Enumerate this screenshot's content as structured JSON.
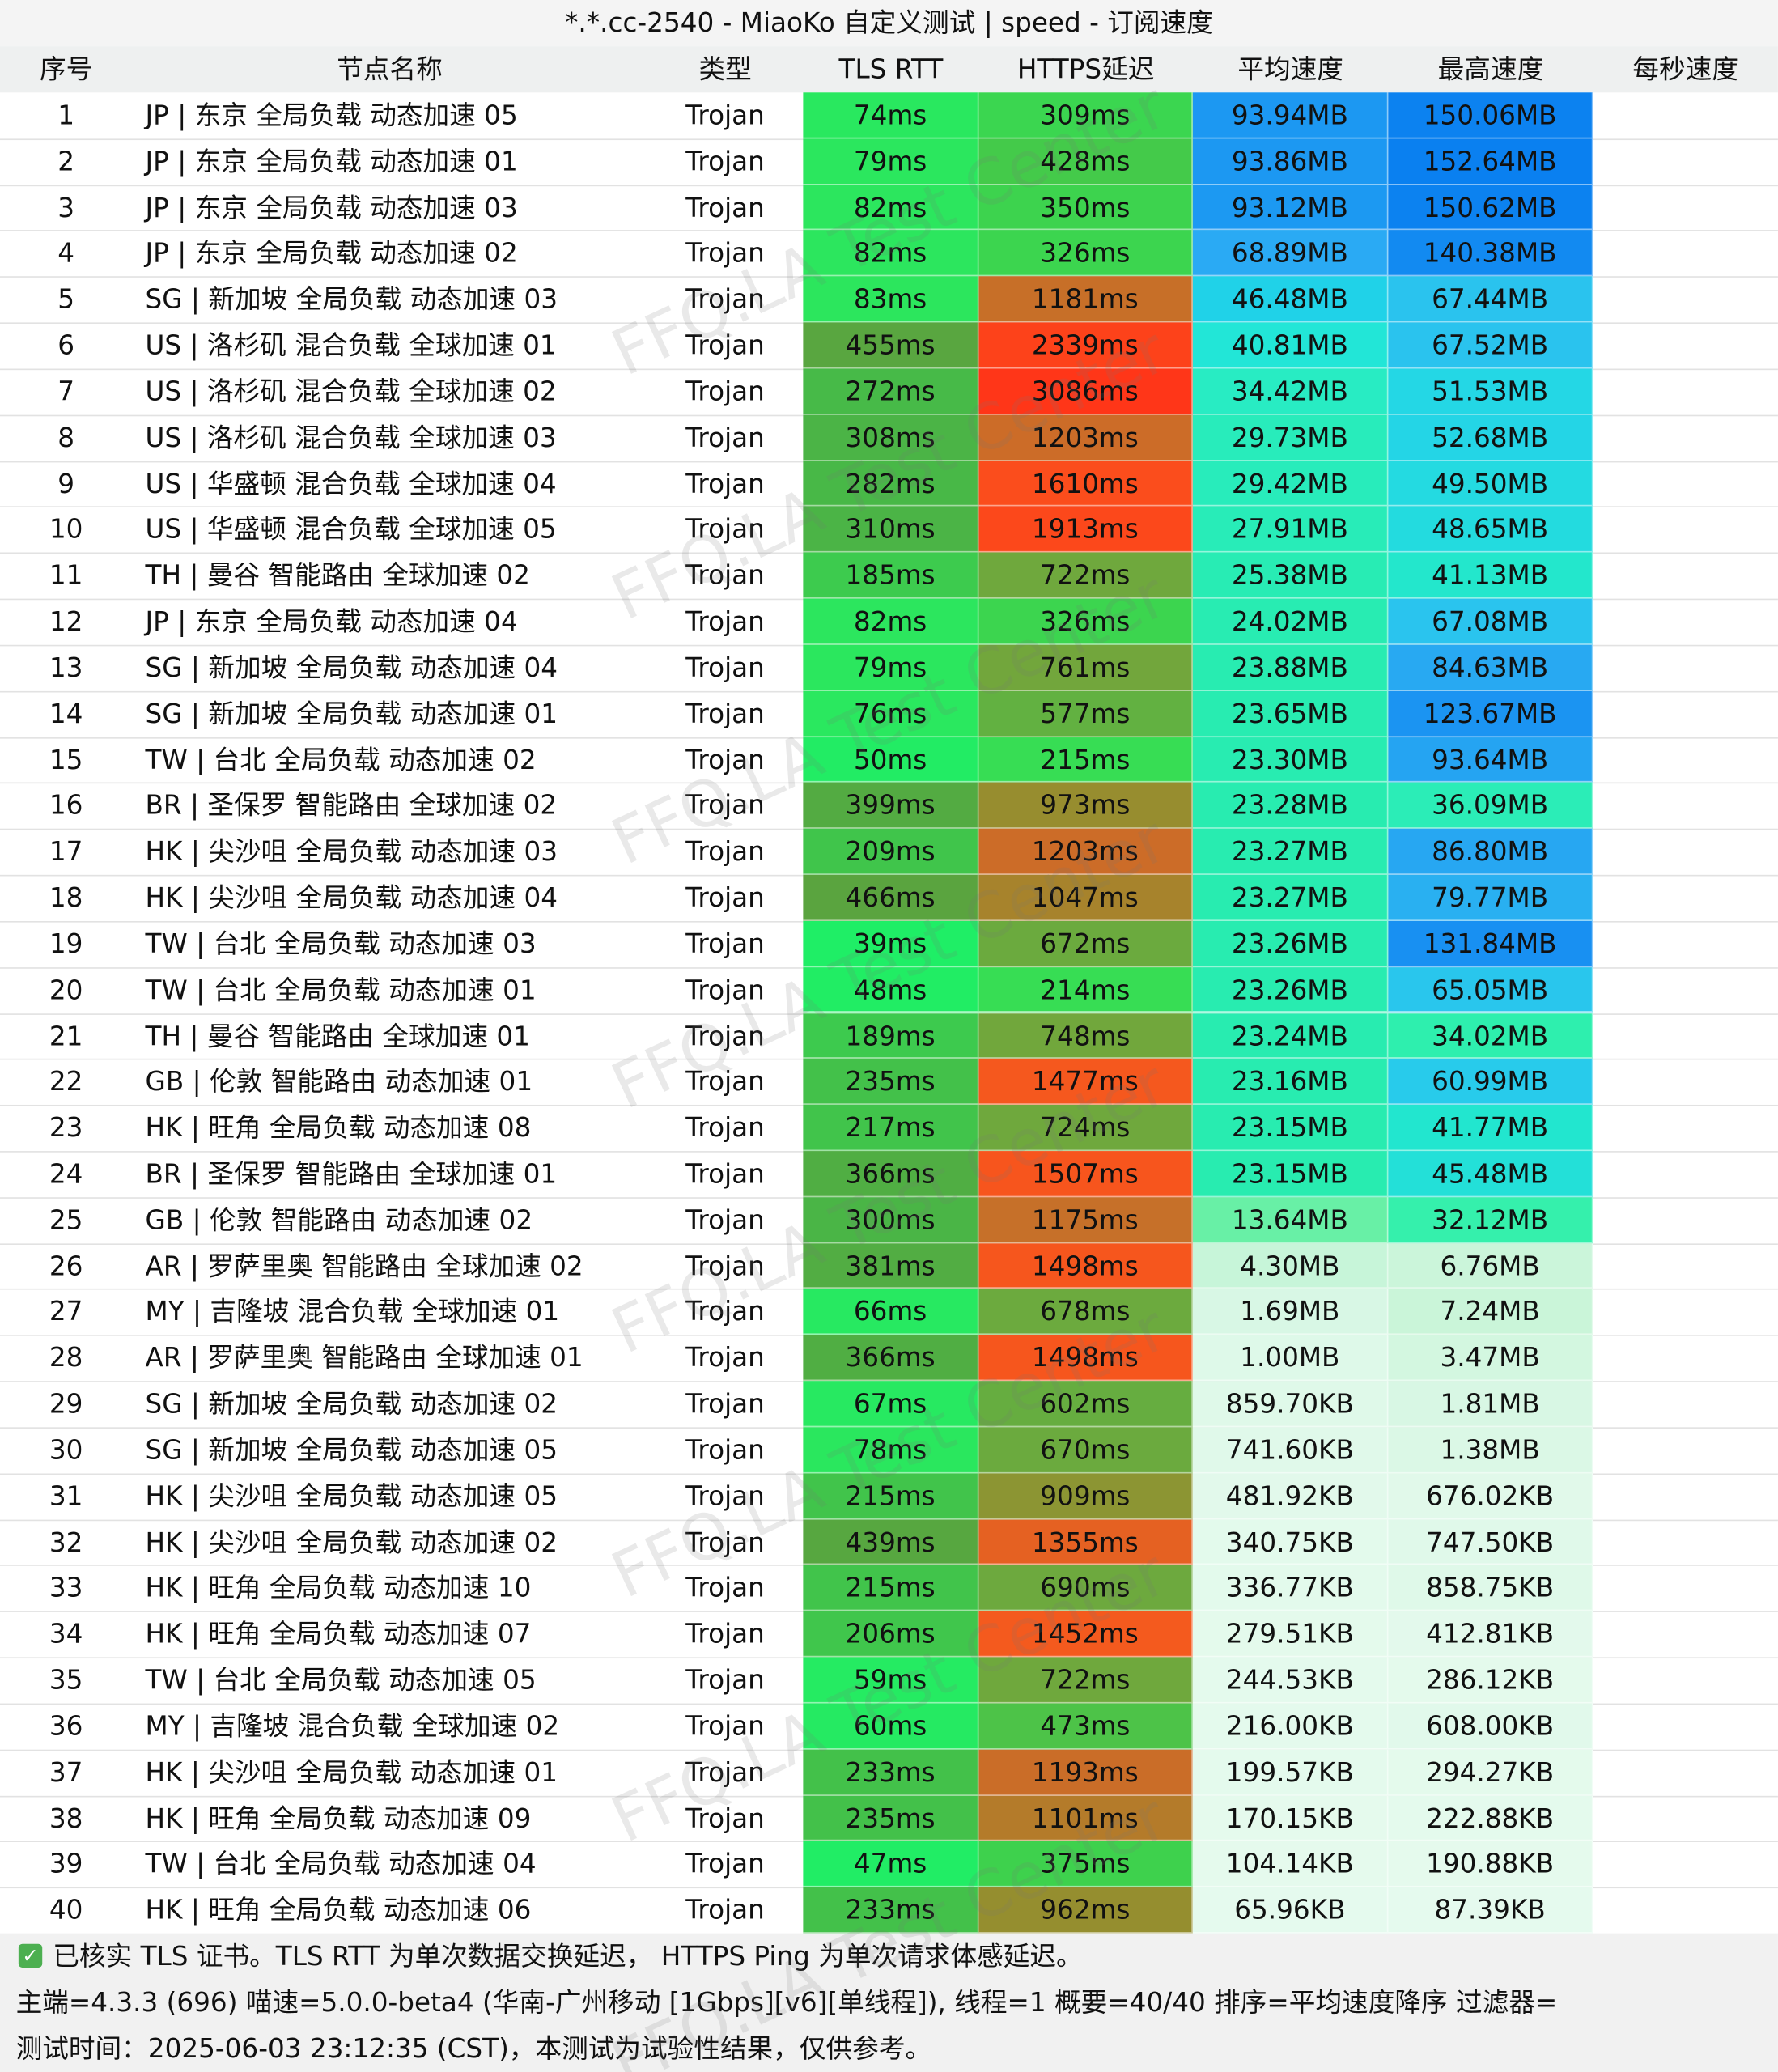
{
  "title": "*.*.cc-2540 - MiaoKo 自定义测试 | speed - 订阅速度",
  "watermark": "FFQ.LA Test Center",
  "table": {
    "headers": [
      "序号",
      "节点名称",
      "类型",
      "TLS RTT",
      "HTTPS延迟",
      "平均速度",
      "最高速度",
      "每秒速度"
    ],
    "rows": [
      [
        "1",
        "JP | 东京 全局负载 动态加速 05",
        "Trojan",
        "74ms",
        "309ms",
        "93.94MB",
        "150.06MB"
      ],
      [
        "2",
        "JP | 东京 全局负载 动态加速 01",
        "Trojan",
        "79ms",
        "428ms",
        "93.86MB",
        "152.64MB"
      ],
      [
        "3",
        "JP | 东京 全局负载 动态加速 03",
        "Trojan",
        "82ms",
        "350ms",
        "93.12MB",
        "150.62MB"
      ],
      [
        "4",
        "JP | 东京 全局负载 动态加速 02",
        "Trojan",
        "82ms",
        "326ms",
        "68.89MB",
        "140.38MB"
      ],
      [
        "5",
        "SG | 新加坡 全局负载 动态加速 03",
        "Trojan",
        "83ms",
        "1181ms",
        "46.48MB",
        "67.44MB"
      ],
      [
        "6",
        "US | 洛杉矶 混合负载 全球加速 01",
        "Trojan",
        "455ms",
        "2339ms",
        "40.81MB",
        "67.52MB"
      ],
      [
        "7",
        "US | 洛杉矶 混合负载 全球加速 02",
        "Trojan",
        "272ms",
        "3086ms",
        "34.42MB",
        "51.53MB"
      ],
      [
        "8",
        "US | 洛杉矶 混合负载 全球加速 03",
        "Trojan",
        "308ms",
        "1203ms",
        "29.73MB",
        "52.68MB"
      ],
      [
        "9",
        "US | 华盛顿 混合负载 全球加速 04",
        "Trojan",
        "282ms",
        "1610ms",
        "29.42MB",
        "49.50MB"
      ],
      [
        "10",
        "US | 华盛顿 混合负载 全球加速 05",
        "Trojan",
        "310ms",
        "1913ms",
        "27.91MB",
        "48.65MB"
      ],
      [
        "11",
        "TH | 曼谷 智能路由 全球加速 02",
        "Trojan",
        "185ms",
        "722ms",
        "25.38MB",
        "41.13MB"
      ],
      [
        "12",
        "JP | 东京 全局负载 动态加速 04",
        "Trojan",
        "82ms",
        "326ms",
        "24.02MB",
        "67.08MB"
      ],
      [
        "13",
        "SG | 新加坡 全局负载 动态加速 04",
        "Trojan",
        "79ms",
        "761ms",
        "23.88MB",
        "84.63MB"
      ],
      [
        "14",
        "SG | 新加坡 全局负载 动态加速 01",
        "Trojan",
        "76ms",
        "577ms",
        "23.65MB",
        "123.67MB"
      ],
      [
        "15",
        "TW | 台北 全局负载 动态加速 02",
        "Trojan",
        "50ms",
        "215ms",
        "23.30MB",
        "93.64MB"
      ],
      [
        "16",
        "BR | 圣保罗 智能路由 全球加速 02",
        "Trojan",
        "399ms",
        "973ms",
        "23.28MB",
        "36.09MB"
      ],
      [
        "17",
        "HK | 尖沙咀 全局负载 动态加速 03",
        "Trojan",
        "209ms",
        "1203ms",
        "23.27MB",
        "86.80MB"
      ],
      [
        "18",
        "HK | 尖沙咀 全局负载 动态加速 04",
        "Trojan",
        "466ms",
        "1047ms",
        "23.27MB",
        "79.77MB"
      ],
      [
        "19",
        "TW | 台北 全局负载 动态加速 03",
        "Trojan",
        "39ms",
        "672ms",
        "23.26MB",
        "131.84MB"
      ],
      [
        "20",
        "TW | 台北 全局负载 动态加速 01",
        "Trojan",
        "48ms",
        "214ms",
        "23.26MB",
        "65.05MB"
      ],
      [
        "21",
        "TH | 曼谷 智能路由 全球加速 01",
        "Trojan",
        "189ms",
        "748ms",
        "23.24MB",
        "34.02MB"
      ],
      [
        "22",
        "GB | 伦敦 智能路由 动态加速 01",
        "Trojan",
        "235ms",
        "1477ms",
        "23.16MB",
        "60.99MB"
      ],
      [
        "23",
        "HK | 旺角 全局负载 动态加速 08",
        "Trojan",
        "217ms",
        "724ms",
        "23.15MB",
        "41.77MB"
      ],
      [
        "24",
        "BR | 圣保罗 智能路由 全球加速 01",
        "Trojan",
        "366ms",
        "1507ms",
        "23.15MB",
        "45.48MB"
      ],
      [
        "25",
        "GB | 伦敦 智能路由 动态加速 02",
        "Trojan",
        "300ms",
        "1175ms",
        "13.64MB",
        "32.12MB"
      ],
      [
        "26",
        "AR | 罗萨里奥 智能路由 全球加速 02",
        "Trojan",
        "381ms",
        "1498ms",
        "4.30MB",
        "6.76MB"
      ],
      [
        "27",
        "MY | 吉隆坡 混合负载 全球加速 01",
        "Trojan",
        "66ms",
        "678ms",
        "1.69MB",
        "7.24MB"
      ],
      [
        "28",
        "AR | 罗萨里奥 智能路由 全球加速 01",
        "Trojan",
        "366ms",
        "1498ms",
        "1.00MB",
        "3.47MB"
      ],
      [
        "29",
        "SG | 新加坡 全局负载 动态加速 02",
        "Trojan",
        "67ms",
        "602ms",
        "859.70KB",
        "1.81MB"
      ],
      [
        "30",
        "SG | 新加坡 全局负载 动态加速 05",
        "Trojan",
        "78ms",
        "670ms",
        "741.60KB",
        "1.38MB"
      ],
      [
        "31",
        "HK | 尖沙咀 全局负载 动态加速 05",
        "Trojan",
        "215ms",
        "909ms",
        "481.92KB",
        "676.02KB"
      ],
      [
        "32",
        "HK | 尖沙咀 全局负载 动态加速 02",
        "Trojan",
        "439ms",
        "1355ms",
        "340.75KB",
        "747.50KB"
      ],
      [
        "33",
        "HK | 旺角 全局负载 动态加速 10",
        "Trojan",
        "215ms",
        "690ms",
        "336.77KB",
        "858.75KB"
      ],
      [
        "34",
        "HK | 旺角 全局负载 动态加速 07",
        "Trojan",
        "206ms",
        "1452ms",
        "279.51KB",
        "412.81KB"
      ],
      [
        "35",
        "TW | 台北 全局负载 动态加速 05",
        "Trojan",
        "59ms",
        "722ms",
        "244.53KB",
        "286.12KB"
      ],
      [
        "36",
        "MY | 吉隆坡 混合负载 全球加速 02",
        "Trojan",
        "60ms",
        "473ms",
        "216.00KB",
        "608.00KB"
      ],
      [
        "37",
        "HK | 尖沙咀 全局负载 动态加速 01",
        "Trojan",
        "233ms",
        "1193ms",
        "199.57KB",
        "294.27KB"
      ],
      [
        "38",
        "HK | 旺角 全局负载 动态加速 09",
        "Trojan",
        "235ms",
        "1101ms",
        "170.15KB",
        "222.88KB"
      ],
      [
        "39",
        "TW | 台北 全局负载 动态加速 04",
        "Trojan",
        "47ms",
        "375ms",
        "104.14KB",
        "190.88KB"
      ],
      [
        "40",
        "HK | 旺角 全局负载 动态加速 06",
        "Trojan",
        "233ms",
        "962ms",
        "65.96KB",
        "87.39KB"
      ]
    ]
  },
  "footer": [
    "已核实 TLS 证书。TLS RTT 为单次数据交换延迟， HTTPS Ping 为单次请求体感延迟。",
    "主端=4.3.3 (696) 喵速=5.0.0-beta4 (华南-广州移动 [1Gbps][v6][单线程]), 线程=1 概要=40/40 排序=平均速度降序 过滤器=",
    "测试时间：2025-06-03 23:12:35 (CST)，本测试为试验性结果，仅供参考。"
  ]
}
